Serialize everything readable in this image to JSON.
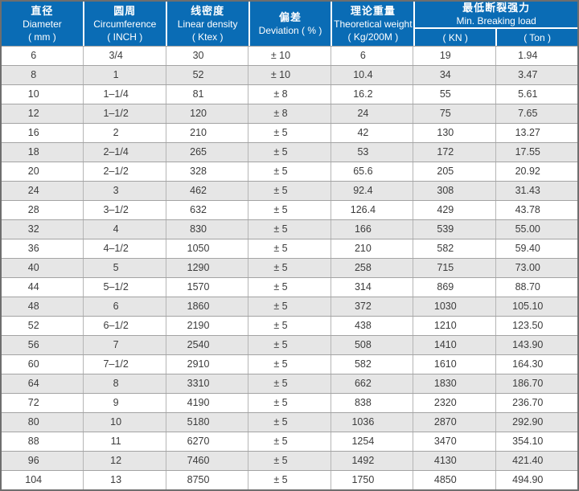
{
  "colors": {
    "header_bg": "#0a6cb5",
    "header_text": "#ffffff",
    "row_alt_bg": "#e6e6e6",
    "body_text": "#3c3c3c",
    "border_outer": "#6e6e6e",
    "border_inner": "#b5b5b5"
  },
  "chart_data": {
    "type": "table",
    "columns": [
      {
        "cn": "直径",
        "en": "Diameter",
        "unit": "( mm )"
      },
      {
        "cn": "圆周",
        "en": "Circumference",
        "unit": "( INCH )"
      },
      {
        "cn": "线密度",
        "en": "Linear density",
        "unit": "( Ktex )"
      },
      {
        "cn": "偏差",
        "en": "Deviation ( % )",
        "unit": ""
      },
      {
        "cn": "理论重量",
        "en": "Theoretical weight",
        "unit": "( Kg/200M )"
      },
      {
        "cn": "最低断裂强力",
        "en": "Min. Breaking load",
        "subcolumns": [
          "( KN )",
          "( Ton )"
        ]
      }
    ],
    "rows": [
      [
        "6",
        "3/4",
        "30",
        "± 10",
        "6",
        "19",
        "1.94"
      ],
      [
        "8",
        "1",
        "52",
        "± 10",
        "10.4",
        "34",
        "3.47"
      ],
      [
        "10",
        "1–1/4",
        "81",
        "± 8",
        "16.2",
        "55",
        "5.61"
      ],
      [
        "12",
        "1–1/2",
        "120",
        "± 8",
        "24",
        "75",
        "7.65"
      ],
      [
        "16",
        "2",
        "210",
        "± 5",
        "42",
        "130",
        "13.27"
      ],
      [
        "18",
        "2–1/4",
        "265",
        "± 5",
        "53",
        "172",
        "17.55"
      ],
      [
        "20",
        "2–1/2",
        "328",
        "± 5",
        "65.6",
        "205",
        "20.92"
      ],
      [
        "24",
        "3",
        "462",
        "± 5",
        "92.4",
        "308",
        "31.43"
      ],
      [
        "28",
        "3–1/2",
        "632",
        "± 5",
        "126.4",
        "429",
        "43.78"
      ],
      [
        "32",
        "4",
        "830",
        "± 5",
        "166",
        "539",
        "55.00"
      ],
      [
        "36",
        "4–1/2",
        "1050",
        "± 5",
        "210",
        "582",
        "59.40"
      ],
      [
        "40",
        "5",
        "1290",
        "± 5",
        "258",
        "715",
        "73.00"
      ],
      [
        "44",
        "5–1/2",
        "1570",
        "± 5",
        "314",
        "869",
        "88.70"
      ],
      [
        "48",
        "6",
        "1860",
        "± 5",
        "372",
        "1030",
        "105.10"
      ],
      [
        "52",
        "6–1/2",
        "2190",
        "± 5",
        "438",
        "1210",
        "123.50"
      ],
      [
        "56",
        "7",
        "2540",
        "± 5",
        "508",
        "1410",
        "143.90"
      ],
      [
        "60",
        "7–1/2",
        "2910",
        "± 5",
        "582",
        "1610",
        "164.30"
      ],
      [
        "64",
        "8",
        "3310",
        "± 5",
        "662",
        "1830",
        "186.70"
      ],
      [
        "72",
        "9",
        "4190",
        "± 5",
        "838",
        "2320",
        "236.70"
      ],
      [
        "80",
        "10",
        "5180",
        "± 5",
        "1036",
        "2870",
        "292.90"
      ],
      [
        "88",
        "11",
        "6270",
        "± 5",
        "1254",
        "3470",
        "354.10"
      ],
      [
        "96",
        "12",
        "7460",
        "± 5",
        "1492",
        "4130",
        "421.40"
      ],
      [
        "104",
        "13",
        "8750",
        "± 5",
        "1750",
        "4850",
        "494.90"
      ]
    ]
  }
}
